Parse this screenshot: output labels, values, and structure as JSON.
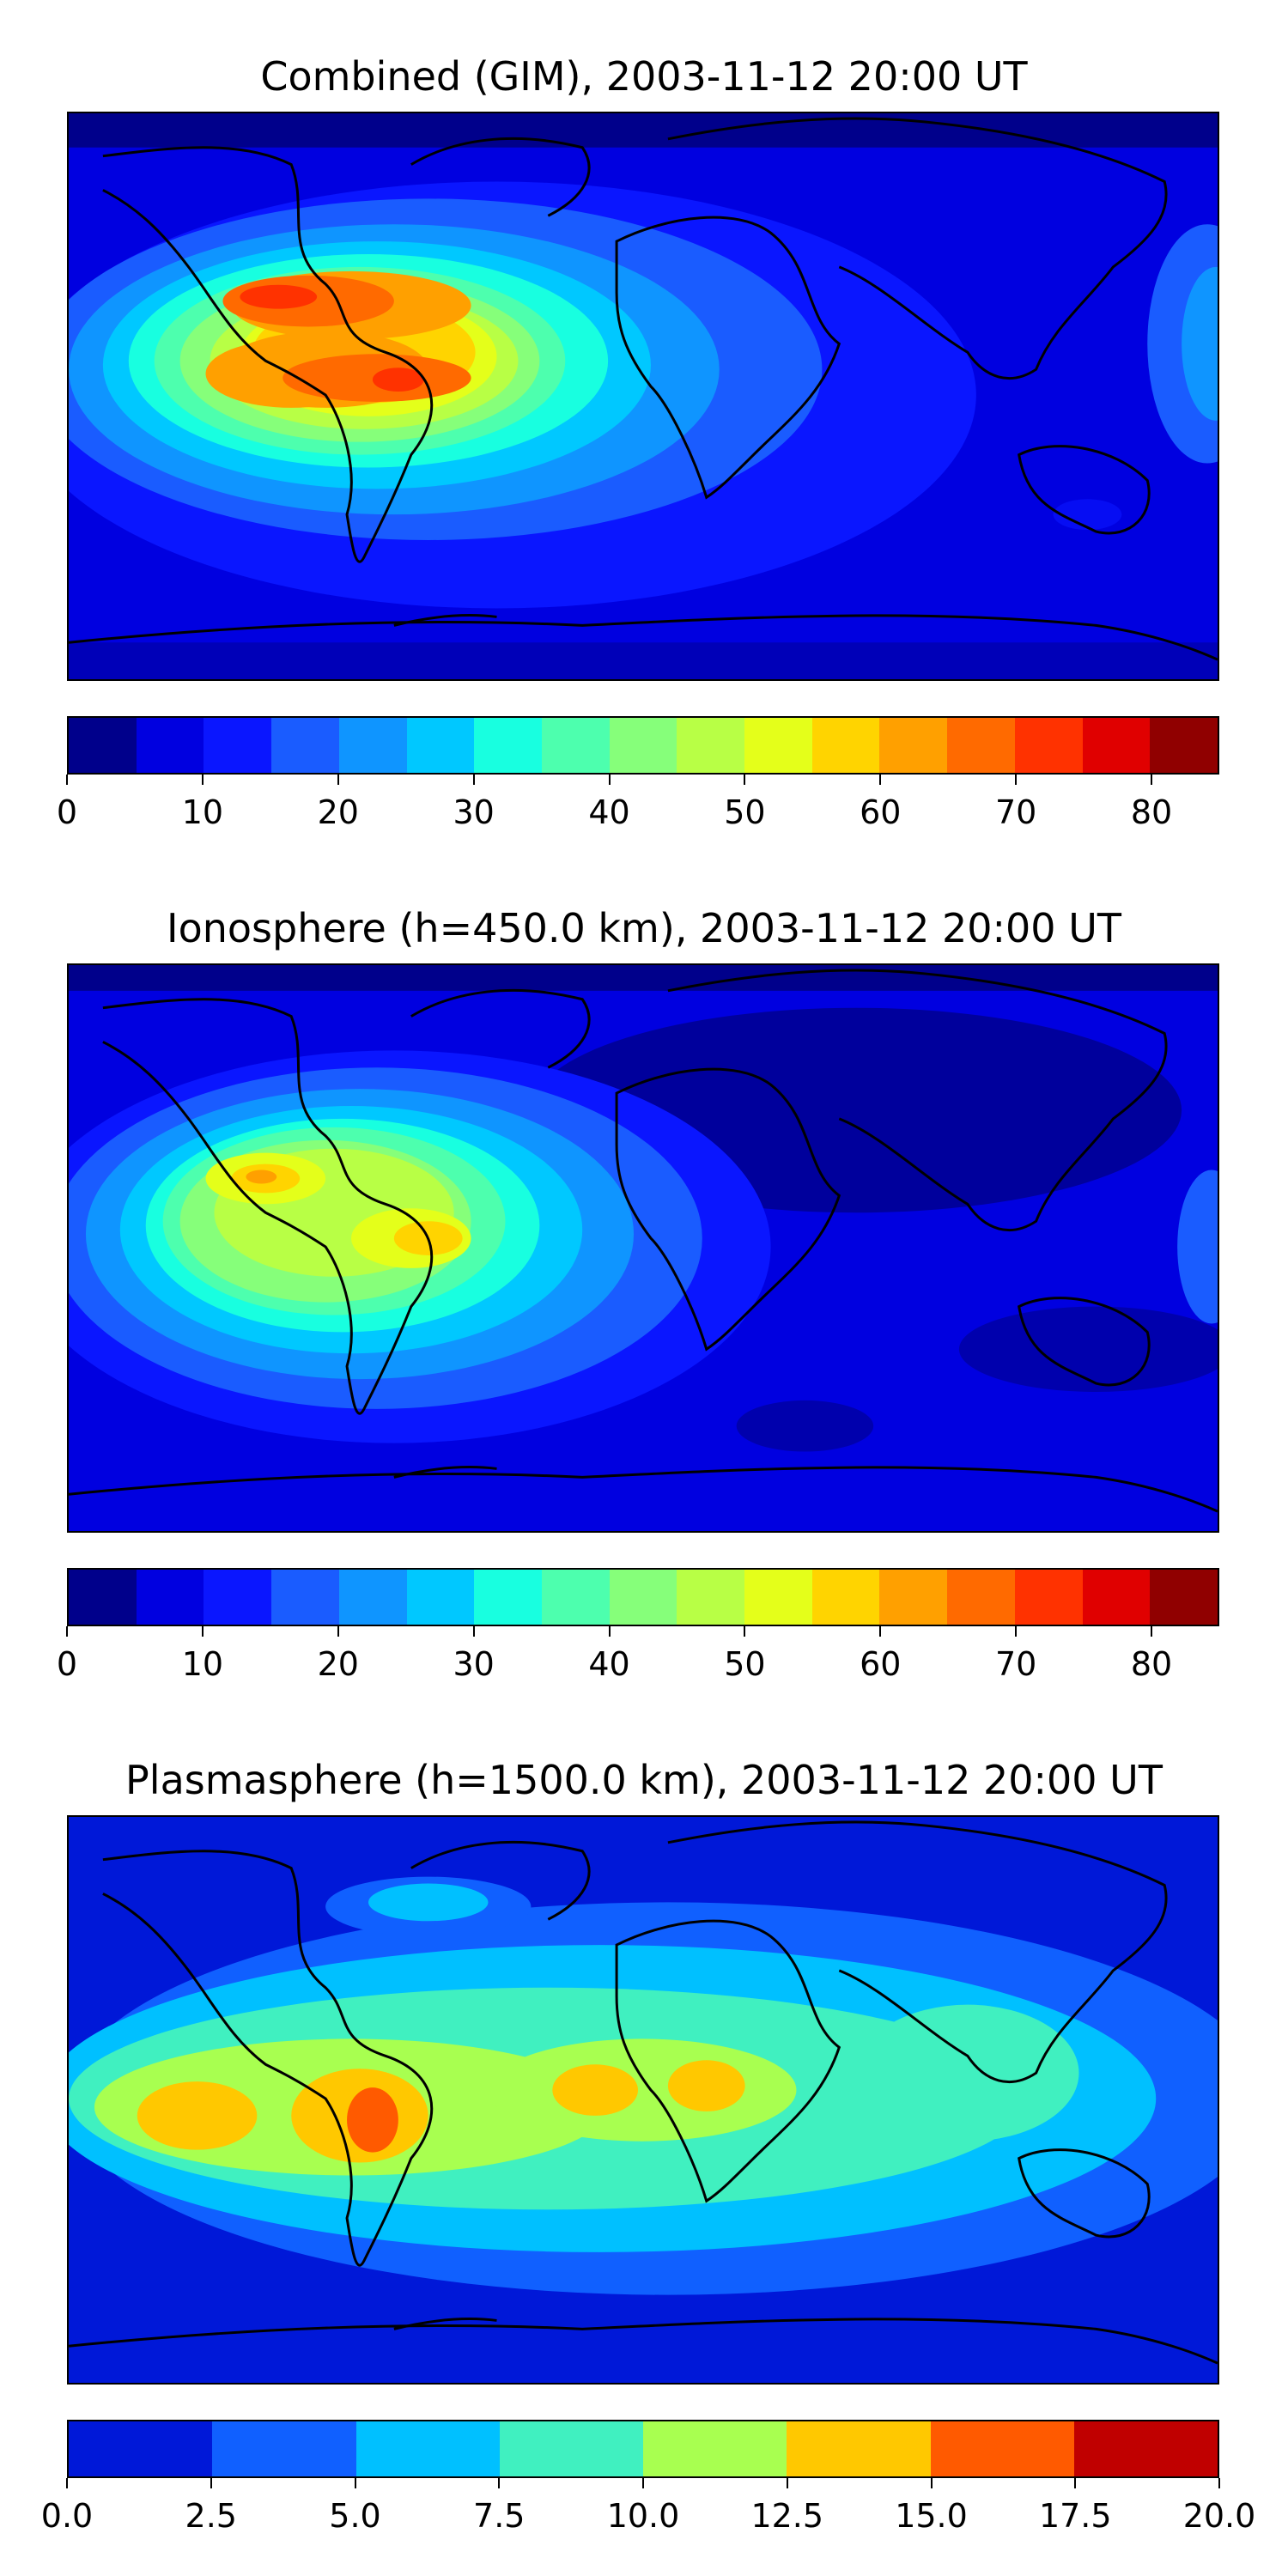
{
  "panels": [
    {
      "title": "Combined (GIM), 2003-11-12 20:00 UT",
      "colorbar": {
        "colors": [
          "#00008b",
          "#0000e0",
          "#0a16ff",
          "#1a5cff",
          "#0f95ff",
          "#00c8ff",
          "#18ffe0",
          "#4dffae",
          "#86ff7a",
          "#b8ff45",
          "#e4ff1a",
          "#ffd400",
          "#ffa000",
          "#ff6a00",
          "#ff3200",
          "#e00000",
          "#900000"
        ],
        "tick_labels": [
          "0",
          "10",
          "20",
          "30",
          "40",
          "50",
          "60",
          "70",
          "80"
        ],
        "tick_values": [
          0,
          10,
          20,
          30,
          40,
          50,
          60,
          70,
          80
        ],
        "range": [
          0,
          85
        ]
      }
    },
    {
      "title": "Ionosphere  (h=450.0 km), 2003-11-12 20:00 UT",
      "colorbar": {
        "colors": [
          "#00008b",
          "#0000e0",
          "#0a16ff",
          "#1a5cff",
          "#0f95ff",
          "#00c8ff",
          "#18ffe0",
          "#4dffae",
          "#86ff7a",
          "#b8ff45",
          "#e4ff1a",
          "#ffd400",
          "#ffa000",
          "#ff6a00",
          "#ff3200",
          "#e00000",
          "#900000"
        ],
        "tick_labels": [
          "0",
          "10",
          "20",
          "30",
          "40",
          "50",
          "60",
          "70",
          "80"
        ],
        "tick_values": [
          0,
          10,
          20,
          30,
          40,
          50,
          60,
          70,
          80
        ],
        "range": [
          0,
          85
        ]
      }
    },
    {
      "title": "Plasmasphere (h=1500.0 km), 2003-11-12 20:00 UT",
      "colorbar": {
        "colors": [
          "#0018d8",
          "#1060ff",
          "#00c0ff",
          "#40f0c0",
          "#a8ff50",
          "#ffc800",
          "#ff5a00",
          "#c00000"
        ],
        "tick_labels": [
          "0.0",
          "2.5",
          "5.0",
          "7.5",
          "10.0",
          "12.5",
          "15.0",
          "17.5",
          "20.0"
        ],
        "tick_values": [
          0,
          2.5,
          5,
          7.5,
          10,
          12.5,
          15,
          17.5,
          20
        ],
        "range": [
          0,
          20
        ]
      }
    }
  ]
}
